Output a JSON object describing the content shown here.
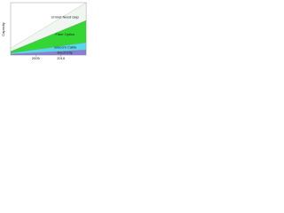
{
  "chart_data": {
    "type": "stacked-area",
    "y_label": "Capacity",
    "x": [
      2000,
      2015
    ],
    "xlim": [
      2000,
      2015
    ],
    "xticks": [
      2005,
      2010
    ],
    "ylim": [
      0,
      100
    ],
    "series": [
      {
        "name": "Electricity",
        "color": "#8a7fd6",
        "values": [
          2,
          10
        ]
      },
      {
        "name": "Telecom Cable",
        "color": "#5ad8e8",
        "values": [
          2,
          14
        ]
      },
      {
        "name": "Fiber Optics",
        "color": "#33d633",
        "values": [
          3,
          42
        ]
      },
      {
        "name": "Unmet Need Gap",
        "color": "#f0f6f0",
        "values": [
          6,
          34
        ]
      }
    ]
  }
}
